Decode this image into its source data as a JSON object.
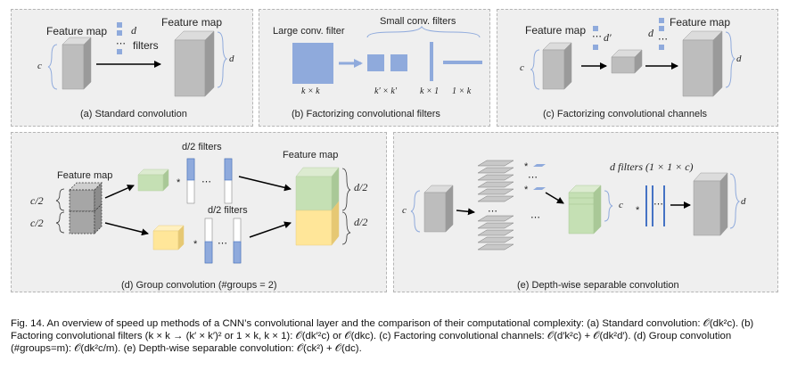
{
  "panels": {
    "a": {
      "caption": "(a) Standard convolution",
      "input_label": "Feature map",
      "output_label": "Feature map",
      "c": "c",
      "d_filters": "d",
      "dots": "⋯",
      "filters_word": "filters",
      "d_out": "d"
    },
    "b": {
      "caption": "(b) Factorizing convolutional filters",
      "large_label": "Large conv. filter",
      "small_label": "Small conv. filters",
      "kxk": "k × k",
      "kpkp": "k′ × k′",
      "kx1": "k × 1",
      "onexk": "1 × k"
    },
    "c": {
      "caption": "(c) Factorizing convolutional channels",
      "input_label": "Feature map",
      "output_label": "Feature map",
      "c": "c",
      "dprime": "d′",
      "dots1": "⋯",
      "d": "d",
      "dots2": "⋯",
      "d_out": "d"
    },
    "d": {
      "caption": "(d) Group convolution (#groups = 2)",
      "input_label": "Feature map",
      "output_label": "Feature map",
      "c2_top": "c/2",
      "c2_bottom": "c/2",
      "filters_top": "d/2 filters",
      "filters_bottom": "d/2 filters",
      "star": "*",
      "dots": "⋯",
      "d2_top": "d/2",
      "d2_bottom": "d/2"
    },
    "e": {
      "caption": "(e) Depth-wise separable convolution",
      "c": "c",
      "star": "*",
      "dots": "⋯",
      "c_mid": "c",
      "filters_label": "d filters (1 × 1 × c)",
      "d_out": "d"
    }
  },
  "figure_caption": "Fig. 14.  An overview of speed up methods of a CNN’s convolutional layer and the comparison of their computational complexity: (a) Standard convolution: 𝒪(dk²c). (b) Factoring convolutional filters (k × k → (k′ × k′)² or 1 × k, k × 1): 𝒪(dk′²c) or 𝒪(dkc). (c) Factoring convolutional channels: 𝒪(d′k²c) + 𝒪(dk²d′). (d) Group convolution (#groups=m): 𝒪(dk²c/m). (e) Depth-wise separable convolution: 𝒪(ck²) + 𝒪(dc).",
  "colors": {
    "panel_bg": "#efefef",
    "gray_face": "#bdbdbd",
    "gray_top": "#dcdcdc",
    "gray_side": "#9a9a9a",
    "blue": "#8faadc",
    "blue_dark": "#4472c4",
    "green": "#c5e0b4",
    "yellow": "#ffe699"
  }
}
